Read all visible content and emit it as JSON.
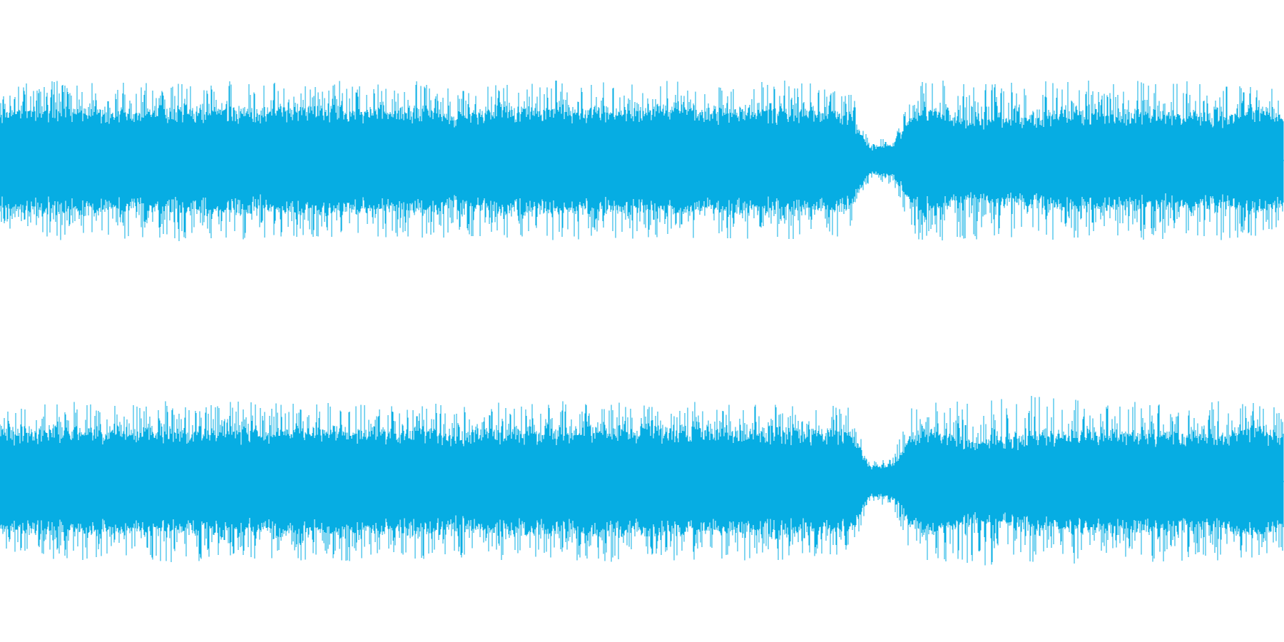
{
  "waveform": {
    "color": "#06ADE3",
    "background": "#FFFFFF",
    "channels": [
      {
        "name": "",
        "peak_profile": [
          0.4,
          0.48,
          0.5,
          0.5,
          0.49,
          0.47,
          0.5,
          0.49,
          0.51,
          0.5,
          0.49,
          0.5,
          0.48,
          0.5,
          0.49,
          0.49,
          0.5,
          0.48,
          0.49,
          0.5,
          0.49,
          0.47,
          0.48,
          0.5,
          0.49,
          0.5,
          0.5,
          0.49,
          0.5,
          0.49,
          0.49,
          0.5,
          0.49,
          0.48,
          0.5,
          0.49,
          0.5,
          0.48,
          0.49,
          0.47,
          0.12,
          0.15,
          0.49,
          0.5,
          0.51,
          0.5,
          0.48,
          0.5,
          0.5,
          0.49,
          0.5,
          0.48,
          0.5,
          0.49,
          0.5,
          0.49,
          0.5,
          0.49,
          0.48,
          0.43
        ],
        "body_profile": [
          0.28,
          0.3,
          0.31,
          0.3,
          0.31,
          0.29,
          0.31,
          0.3,
          0.31,
          0.3,
          0.31,
          0.3,
          0.29,
          0.31,
          0.3,
          0.3,
          0.31,
          0.29,
          0.3,
          0.31,
          0.3,
          0.26,
          0.29,
          0.31,
          0.3,
          0.31,
          0.3,
          0.31,
          0.3,
          0.3,
          0.3,
          0.31,
          0.3,
          0.3,
          0.31,
          0.3,
          0.31,
          0.3,
          0.3,
          0.29,
          0.08,
          0.1,
          0.29,
          0.3,
          0.26,
          0.24,
          0.25,
          0.26,
          0.27,
          0.28,
          0.29,
          0.29,
          0.28,
          0.28,
          0.28,
          0.27,
          0.26,
          0.3,
          0.31,
          0.27
        ]
      },
      {
        "name": "",
        "peak_profile": [
          0.41,
          0.48,
          0.5,
          0.5,
          0.49,
          0.48,
          0.5,
          0.49,
          0.51,
          0.5,
          0.49,
          0.5,
          0.49,
          0.5,
          0.5,
          0.49,
          0.5,
          0.48,
          0.49,
          0.5,
          0.49,
          0.48,
          0.48,
          0.5,
          0.49,
          0.5,
          0.5,
          0.49,
          0.5,
          0.49,
          0.49,
          0.5,
          0.5,
          0.49,
          0.5,
          0.49,
          0.5,
          0.48,
          0.49,
          0.47,
          0.13,
          0.16,
          0.5,
          0.5,
          0.51,
          0.52,
          0.54,
          0.55,
          0.53,
          0.52,
          0.5,
          0.5,
          0.51,
          0.5,
          0.5,
          0.49,
          0.5,
          0.49,
          0.49,
          0.44
        ],
        "body_profile": [
          0.29,
          0.31,
          0.31,
          0.31,
          0.31,
          0.3,
          0.31,
          0.31,
          0.31,
          0.31,
          0.31,
          0.31,
          0.3,
          0.31,
          0.31,
          0.3,
          0.31,
          0.3,
          0.3,
          0.31,
          0.31,
          0.27,
          0.3,
          0.31,
          0.31,
          0.31,
          0.31,
          0.31,
          0.31,
          0.3,
          0.31,
          0.31,
          0.31,
          0.3,
          0.31,
          0.31,
          0.31,
          0.3,
          0.31,
          0.3,
          0.09,
          0.11,
          0.3,
          0.31,
          0.27,
          0.25,
          0.26,
          0.27,
          0.28,
          0.29,
          0.3,
          0.3,
          0.29,
          0.29,
          0.29,
          0.28,
          0.27,
          0.31,
          0.31,
          0.28
        ]
      }
    ]
  }
}
